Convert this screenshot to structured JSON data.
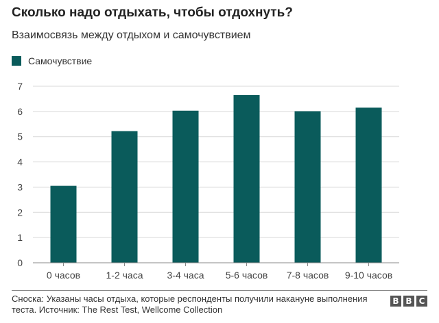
{
  "title": "Сколько надо отдыхать, чтобы отдохнуть?",
  "subtitle": "Взаимосвязь между отдыхом и самочувствием",
  "footnote": "Сноска: Указаны часы отдыха, которые респонденты получили накануне выполнения теста. Источник: The Rest Test, Wellcome Collection",
  "logo": [
    "B",
    "B",
    "C"
  ],
  "colors": {
    "bar": "#0a5b5b",
    "grid": "#d9d9d9",
    "axis": "#888888",
    "logo": "#555555"
  },
  "chart_data": {
    "type": "bar",
    "categories": [
      "0 часов",
      "1-2 часа",
      "3-4 часа",
      "5-6 часов",
      "7-8 часов",
      "9-10 часов"
    ],
    "series": [
      {
        "name": "Самочувствие",
        "values": [
          3.05,
          5.22,
          6.03,
          6.65,
          6.01,
          6.15
        ]
      }
    ],
    "ylim": [
      0,
      7
    ],
    "yticks": [
      0,
      1,
      2,
      3,
      4,
      5,
      6,
      7
    ],
    "grid": true,
    "legend": "top-left"
  }
}
